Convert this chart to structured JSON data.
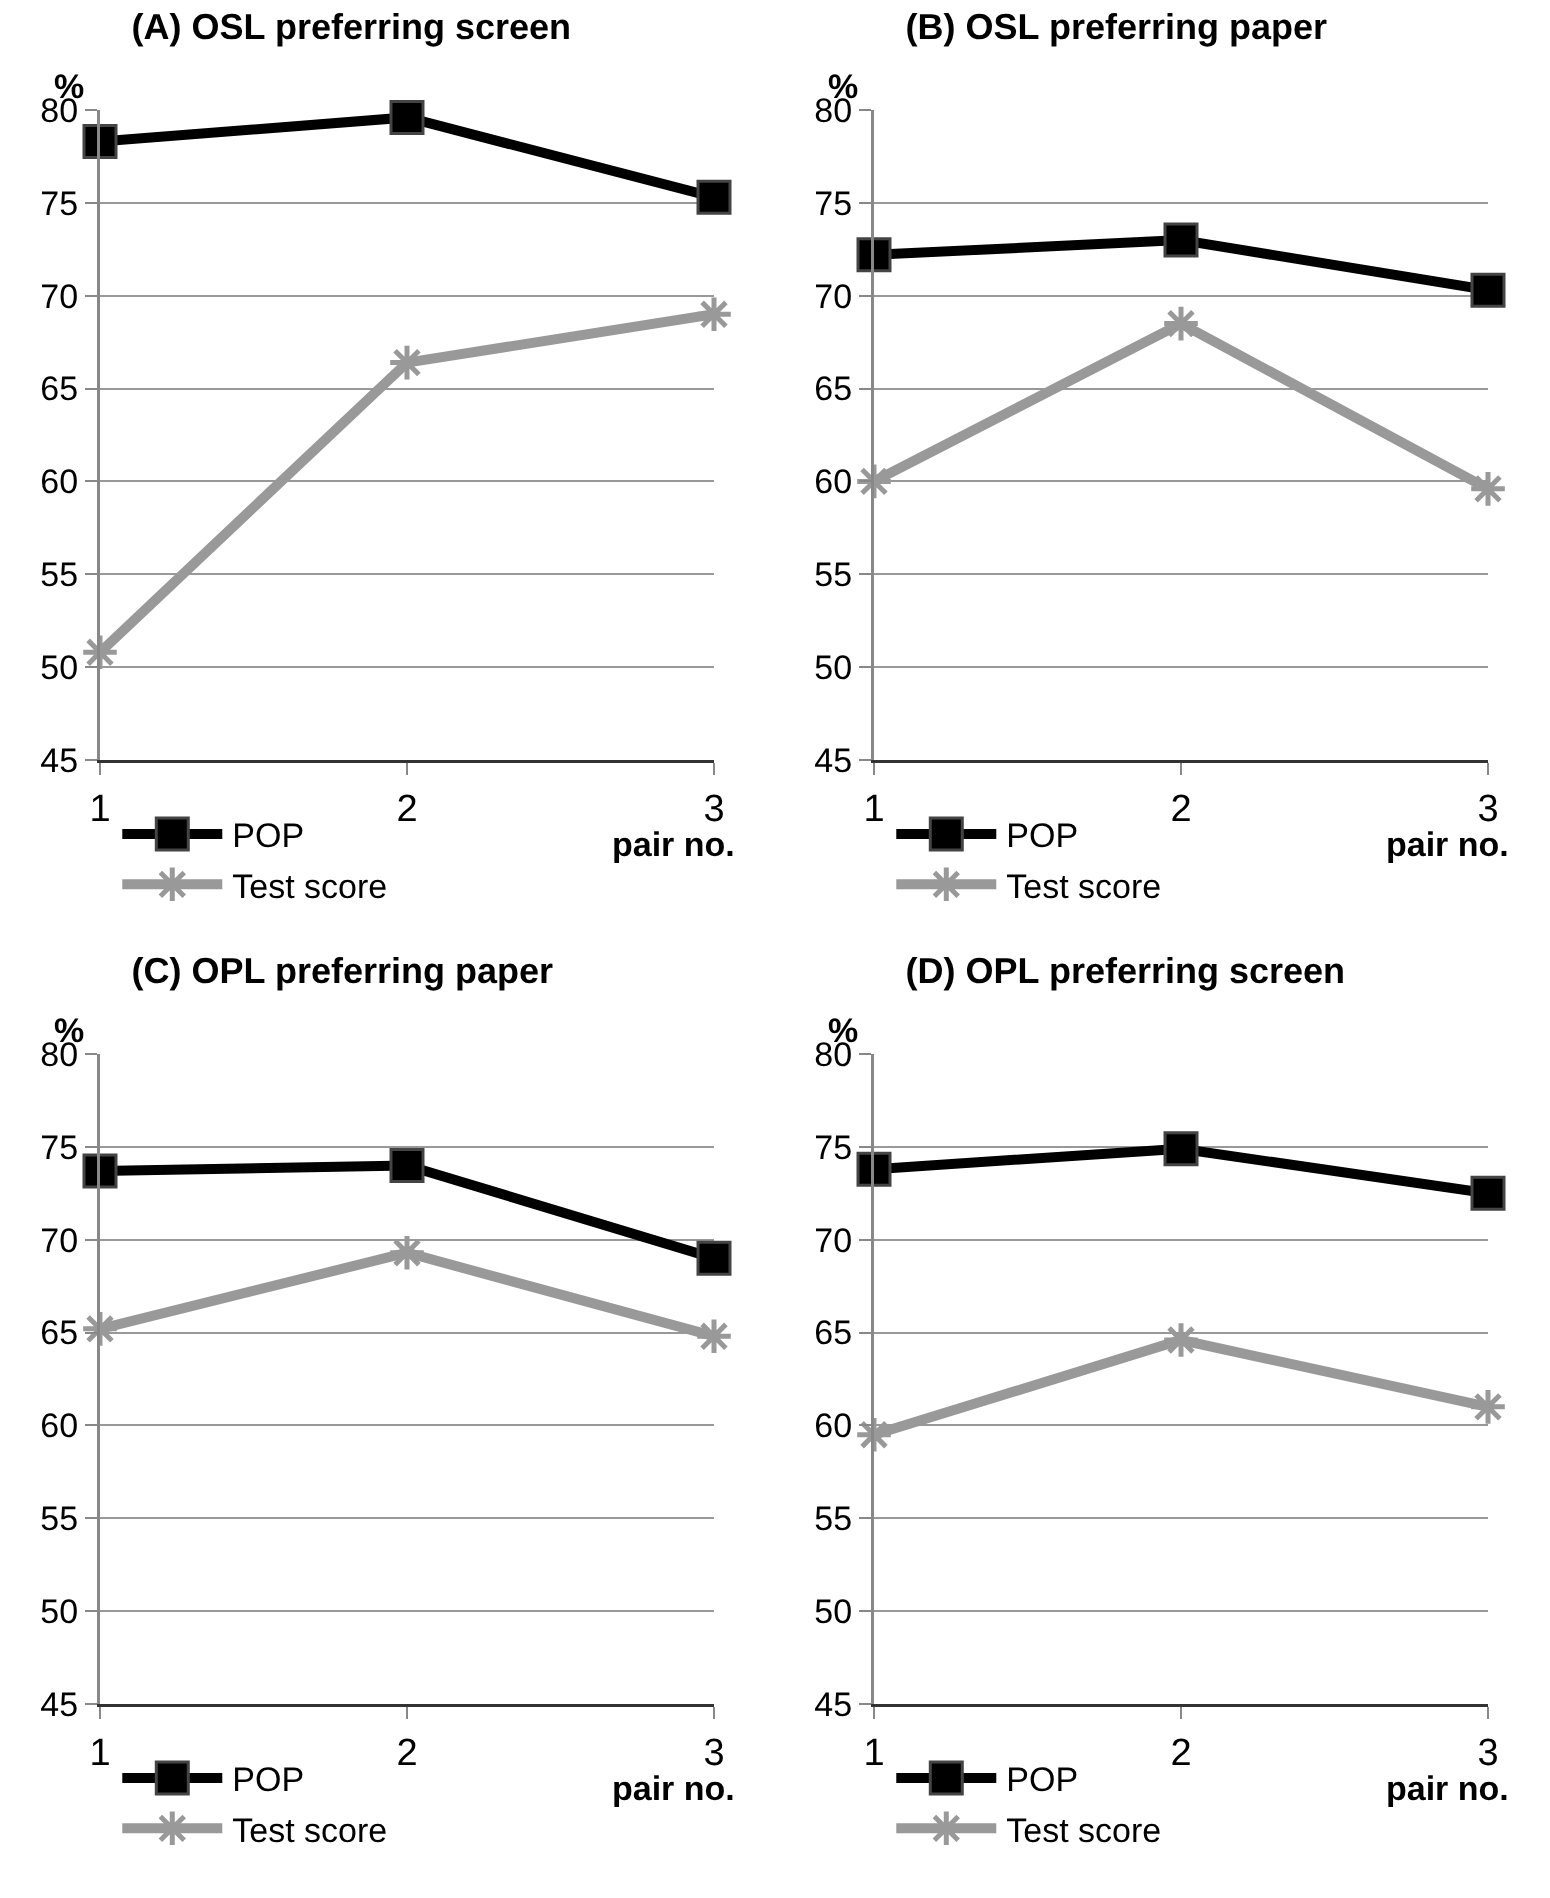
{
  "chart_data": [
    {
      "type": "line",
      "title": "(A) OSL preferring screen",
      "xlabel": "pair no.",
      "ylabel": "%",
      "categories": [
        "1",
        "2",
        "3"
      ],
      "ylim": [
        45,
        80
      ],
      "yticks": [
        45,
        50,
        55,
        60,
        65,
        70,
        75,
        80
      ],
      "grid": "y",
      "legend": "bottom left",
      "series": [
        {
          "name": "POP",
          "color": "#000000",
          "marker": "square",
          "values": [
            78.3,
            79.6,
            75.3
          ]
        },
        {
          "name": "Test score",
          "color": "#999999",
          "marker": "cross",
          "values": [
            50.8,
            66.4,
            69.0
          ]
        }
      ]
    },
    {
      "type": "line",
      "title": "(B) OSL preferring paper",
      "xlabel": "pair no.",
      "ylabel": "%",
      "categories": [
        "1",
        "2",
        "3"
      ],
      "ylim": [
        45,
        80
      ],
      "yticks": [
        45,
        50,
        55,
        60,
        65,
        70,
        75,
        80
      ],
      "grid": "y",
      "legend": "bottom left",
      "series": [
        {
          "name": "POP",
          "color": "#000000",
          "marker": "square",
          "values": [
            72.2,
            73.0,
            70.3
          ]
        },
        {
          "name": "Test score",
          "color": "#999999",
          "marker": "cross",
          "values": [
            60.0,
            68.5,
            59.6
          ]
        }
      ]
    },
    {
      "type": "line",
      "title": "(C) OPL preferring paper",
      "xlabel": "pair no.",
      "ylabel": "%",
      "categories": [
        "1",
        "2",
        "3"
      ],
      "ylim": [
        45,
        80
      ],
      "yticks": [
        45,
        50,
        55,
        60,
        65,
        70,
        75,
        80
      ],
      "grid": "y",
      "legend": "bottom left",
      "series": [
        {
          "name": "POP",
          "color": "#000000",
          "marker": "square",
          "values": [
            73.7,
            74.0,
            69.0
          ]
        },
        {
          "name": "Test score",
          "color": "#999999",
          "marker": "cross",
          "values": [
            65.2,
            69.3,
            64.8
          ]
        }
      ]
    },
    {
      "type": "line",
      "title": "(D) OPL preferring screen",
      "xlabel": "pair no.",
      "ylabel": "%",
      "categories": [
        "1",
        "2",
        "3"
      ],
      "ylim": [
        45,
        80
      ],
      "yticks": [
        45,
        50,
        55,
        60,
        65,
        70,
        75,
        80
      ],
      "grid": "y",
      "legend": "bottom left",
      "series": [
        {
          "name": "POP",
          "color": "#000000",
          "marker": "square",
          "values": [
            73.8,
            74.9,
            72.5
          ]
        },
        {
          "name": "Test score",
          "color": "#999999",
          "marker": "cross",
          "values": [
            59.5,
            64.6,
            61.0
          ]
        }
      ]
    }
  ]
}
